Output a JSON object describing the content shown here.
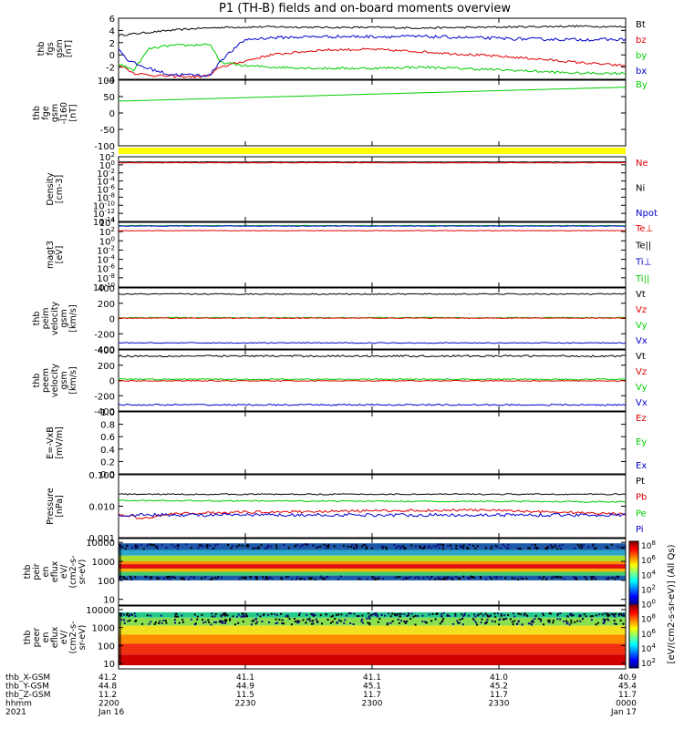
{
  "title": "P1 (TH-B) fields and on-board moments overview",
  "colors": {
    "black": "#000000",
    "red": "#e00000",
    "green": "#00cc00",
    "blue": "#0000cc",
    "yellow": "#ffff00",
    "darkred": "#660000"
  },
  "chart_data": [
    {
      "type": "line",
      "ylabel": [
        "thb",
        "fgs",
        "gsm",
        "[nT]"
      ],
      "yticks": [
        "6",
        "4",
        "2",
        "0",
        "-2",
        "-4"
      ],
      "ylim": [
        -4,
        6
      ],
      "legend": [
        {
          "label": "Bt",
          "color": "#000000"
        },
        {
          "label": "bz",
          "color": "#e00000"
        },
        {
          "label": "by",
          "color": "#00cc00"
        },
        {
          "label": "bx",
          "color": "#0000cc"
        }
      ],
      "series": [
        {
          "name": "Bt",
          "color": "#000000",
          "x": [
            0,
            0.05,
            0.1,
            0.15,
            0.2,
            0.3,
            0.4,
            0.5,
            0.6,
            0.7,
            0.8,
            0.9,
            1
          ],
          "values": [
            3.2,
            3.6,
            4.0,
            4.3,
            4.5,
            4.6,
            4.5,
            4.5,
            4.4,
            4.5,
            4.6,
            4.7,
            4.6
          ],
          "noise": 0.15
        },
        {
          "name": "bz",
          "color": "#e00000",
          "x": [
            0,
            0.03,
            0.06,
            0.1,
            0.15,
            0.18,
            0.2,
            0.25,
            0.3,
            0.4,
            0.5,
            0.6,
            0.7,
            0.8,
            0.9,
            1
          ],
          "values": [
            -1.5,
            -3.0,
            -3.3,
            -3.5,
            -3.6,
            -3.4,
            -2.0,
            -1.0,
            0.0,
            0.8,
            0.9,
            0.5,
            0.0,
            -0.5,
            -1.2,
            -1.8
          ],
          "noise": 0.2
        },
        {
          "name": "by",
          "color": "#00cc00",
          "x": [
            0,
            0.03,
            0.06,
            0.1,
            0.15,
            0.18,
            0.2,
            0.25,
            0.3,
            0.4,
            0.5,
            0.6,
            0.7,
            0.8,
            0.9,
            1
          ],
          "values": [
            -1.5,
            -2.5,
            1.0,
            1.5,
            1.6,
            1.8,
            -1.2,
            -1.8,
            -2.0,
            -2.2,
            -2.2,
            -2.0,
            -2.3,
            -2.6,
            -3.0,
            -3.0
          ],
          "noise": 0.2
        },
        {
          "name": "bx",
          "color": "#0000cc",
          "x": [
            0,
            0.02,
            0.05,
            0.1,
            0.15,
            0.18,
            0.2,
            0.25,
            0.3,
            0.4,
            0.5,
            0.6,
            0.7,
            0.8,
            0.9,
            1
          ],
          "values": [
            1.0,
            -1.0,
            -2.0,
            -3.2,
            -3.3,
            -3.4,
            -1.0,
            2.5,
            2.8,
            3.0,
            3.0,
            3.0,
            2.8,
            2.6,
            2.5,
            2.5
          ],
          "noise": 0.25
        }
      ]
    },
    {
      "type": "line",
      "ylabel": [
        "thb",
        "fge",
        "gsm",
        "-l160",
        "[nT]"
      ],
      "yticks": [
        "100",
        "50",
        "0",
        "-50",
        "-100"
      ],
      "ylim": [
        -130,
        105
      ],
      "legend": [
        {
          "label": "By",
          "color": "#00cc00"
        }
      ],
      "series": [
        {
          "name": "By",
          "color": "#00cc00",
          "x": [
            0,
            1
          ],
          "values": [
            30,
            80
          ],
          "noise": 0
        }
      ]
    },
    {
      "type": "line",
      "ylabel": [
        "Density",
        "[cm-3]"
      ],
      "yticks_sup": [
        {
          "base": "10",
          "exp": "2"
        },
        {
          "base": "10",
          "exp": "0"
        },
        {
          "base": "10",
          "exp": "-2"
        },
        {
          "base": "10",
          "exp": "-4"
        },
        {
          "base": "10",
          "exp": "-6"
        },
        {
          "base": "10",
          "exp": "-8"
        },
        {
          "base": "10",
          "exp": "-10"
        },
        {
          "base": "10",
          "exp": "-12"
        },
        {
          "base": "10",
          "exp": "-14"
        }
      ],
      "ylim": [
        -14,
        2
      ],
      "legend": [
        {
          "label": "Ne",
          "color": "#e00000"
        },
        {
          "label": "Ni",
          "color": "#000000"
        },
        {
          "label": "Npot",
          "color": "#0000cc"
        }
      ],
      "series": [
        {
          "name": "Ni",
          "color": "#000000",
          "x": [
            0,
            1
          ],
          "values": [
            0.7,
            0.7
          ],
          "noise": 0.05
        },
        {
          "name": "Ne",
          "color": "#e00000",
          "x": [
            0,
            1
          ],
          "values": [
            0.5,
            0.5
          ],
          "noise": 0.05
        }
      ]
    },
    {
      "type": "line",
      "ylabel": [
        "magt3",
        "[eV]"
      ],
      "yticks_sup": [
        {
          "base": "10",
          "exp": "4"
        },
        {
          "base": "10",
          "exp": "2"
        },
        {
          "base": "10",
          "exp": "0"
        },
        {
          "base": "10",
          "exp": "-2"
        },
        {
          "base": "10",
          "exp": "-4"
        },
        {
          "base": "10",
          "exp": "-6"
        },
        {
          "base": "10",
          "exp": "-8"
        },
        {
          "base": "10",
          "exp": "-10"
        }
      ],
      "ylim": [
        -10,
        4
      ],
      "legend": [
        {
          "label": "Te⊥",
          "color": "#e00000"
        },
        {
          "label": "Te||",
          "color": "#000000"
        },
        {
          "label": "Ti⊥",
          "color": "#0000cc"
        },
        {
          "label": "Ti||",
          "color": "#00cc00"
        }
      ],
      "series": [
        {
          "name": "Ti||",
          "color": "#00cc00",
          "x": [
            0,
            1
          ],
          "values": [
            3.3,
            3.3
          ],
          "noise": 0.05
        },
        {
          "name": "Ti⊥",
          "color": "#0000cc",
          "x": [
            0,
            1
          ],
          "values": [
            3.2,
            3.2
          ],
          "noise": 0.05
        },
        {
          "name": "Te⊥",
          "color": "#e00000",
          "x": [
            0,
            1
          ],
          "values": [
            2.2,
            2.2
          ],
          "noise": 0.06
        }
      ]
    },
    {
      "type": "line",
      "ylabel": [
        "thb",
        "peim",
        "velocity",
        "gsm",
        "[km/s]"
      ],
      "yticks": [
        "400",
        "200",
        "0",
        "-200",
        "-400"
      ],
      "ylim": [
        -400,
        400
      ],
      "legend": [
        {
          "label": "Vt",
          "color": "#000000"
        },
        {
          "label": "Vz",
          "color": "#e00000"
        },
        {
          "label": "Vy",
          "color": "#00cc00"
        },
        {
          "label": "Vx",
          "color": "#0000cc"
        }
      ],
      "series": [
        {
          "name": "Vt",
          "color": "#000000",
          "x": [
            0,
            1
          ],
          "values": [
            320,
            320
          ],
          "noise": 8
        },
        {
          "name": "Vy",
          "color": "#00cc00",
          "x": [
            0,
            1
          ],
          "values": [
            10,
            10
          ],
          "noise": 6
        },
        {
          "name": "Vz",
          "color": "#e00000",
          "x": [
            0,
            1
          ],
          "values": [
            5,
            5
          ],
          "noise": 5
        },
        {
          "name": "Vx",
          "color": "#0000cc",
          "x": [
            0,
            1
          ],
          "values": [
            -320,
            -320
          ],
          "noise": 6
        }
      ]
    },
    {
      "type": "line",
      "ylabel": [
        "thb",
        "peem",
        "velocity",
        "gsm",
        "[km/s]"
      ],
      "yticks": [
        "400",
        "200",
        "0",
        "-200",
        "-400"
      ],
      "ylim": [
        -400,
        400
      ],
      "legend": [
        {
          "label": "Vt",
          "color": "#000000"
        },
        {
          "label": "Vz",
          "color": "#e00000"
        },
        {
          "label": "Vy",
          "color": "#00cc00"
        },
        {
          "label": "Vx",
          "color": "#0000cc"
        }
      ],
      "series": [
        {
          "name": "Vt",
          "color": "#000000",
          "x": [
            0,
            1
          ],
          "values": [
            320,
            320
          ],
          "noise": 12
        },
        {
          "name": "Vy",
          "color": "#00cc00",
          "x": [
            0,
            1
          ],
          "values": [
            15,
            15
          ],
          "noise": 8
        },
        {
          "name": "Vz",
          "color": "#e00000",
          "x": [
            0,
            1
          ],
          "values": [
            -5,
            -5
          ],
          "noise": 6
        },
        {
          "name": "Vx",
          "color": "#0000cc",
          "x": [
            0,
            1
          ],
          "values": [
            -320,
            -320
          ],
          "noise": 10
        }
      ]
    },
    {
      "type": "line",
      "ylabel": [
        "E=-VxB",
        "[mV/m]"
      ],
      "yticks": [
        "1.0",
        "0.8",
        "0.6",
        "0.4",
        "0.2",
        "0.0"
      ],
      "ylim": [
        0,
        1
      ],
      "legend": [
        {
          "label": "Ez",
          "color": "#e00000"
        },
        {
          "label": "Ey",
          "color": "#00cc00"
        },
        {
          "label": "Ex",
          "color": "#0000cc"
        }
      ],
      "series": []
    },
    {
      "type": "line",
      "ylabel": [
        "Pressure",
        "[nPa]"
      ],
      "yticks": [
        "0.100",
        "0.010",
        "0.001"
      ],
      "ylim": [
        -3,
        -1
      ],
      "legend": [
        {
          "label": "Pt",
          "color": "#000000"
        },
        {
          "label": "Pb",
          "color": "#e00000"
        },
        {
          "label": "Pe",
          "color": "#00cc00"
        },
        {
          "label": "Pi",
          "color": "#0000cc"
        }
      ],
      "series": [
        {
          "name": "Pt",
          "color": "#000000",
          "x": [
            0,
            1
          ],
          "values": [
            -1.62,
            -1.62
          ],
          "noise": 0.02
        },
        {
          "name": "Pe",
          "color": "#00cc00",
          "x": [
            0,
            0.5,
            1
          ],
          "values": [
            -1.82,
            -1.84,
            -1.86
          ],
          "noise": 0.02
        },
        {
          "name": "Pb",
          "color": "#e00000",
          "x": [
            0,
            0.05,
            0.1,
            0.2,
            0.3,
            0.5,
            0.7,
            0.9,
            1
          ],
          "values": [
            -2.25,
            -2.4,
            -2.25,
            -2.2,
            -2.18,
            -2.15,
            -2.12,
            -2.2,
            -2.25
          ],
          "noise": 0.04
        },
        {
          "name": "Pi",
          "color": "#0000cc",
          "x": [
            0,
            1
          ],
          "values": [
            -2.28,
            -2.28
          ],
          "noise": 0.05
        }
      ]
    },
    {
      "type": "heatmap",
      "ylabel": [
        "thb",
        "peir",
        "en",
        "eflux",
        "eV/",
        "(cm2-s-",
        "sr-eV)"
      ],
      "yticks": [
        "10000",
        "1000",
        "100",
        "10"
      ],
      "ylim": [
        0.7,
        4.2
      ],
      "bands": [
        {
          "from": 3.6,
          "to": 3.95,
          "color": "#1e5aa8",
          "speckle": true
        },
        {
          "from": 3.3,
          "to": 3.6,
          "color": "#2aa6c9",
          "speckle": false
        },
        {
          "from": 3.0,
          "to": 3.3,
          "color": "#a8e032",
          "speckle": false
        },
        {
          "from": 2.85,
          "to": 3.0,
          "color": "#ff8c00",
          "speckle": false
        },
        {
          "from": 2.62,
          "to": 2.85,
          "color": "#e01010",
          "speckle": false
        },
        {
          "from": 2.45,
          "to": 2.62,
          "color": "#ffb000",
          "speckle": false
        },
        {
          "from": 2.25,
          "to": 2.45,
          "color": "#3cd070",
          "speckle": false
        },
        {
          "from": 2.0,
          "to": 2.25,
          "color": "#1e5aa8",
          "speckle": true
        }
      ],
      "colorbar": [
        "10",
        "8",
        "10",
        "6",
        "10",
        "4",
        "10",
        "2",
        "10",
        "0"
      ]
    },
    {
      "type": "heatmap",
      "ylabel": [
        "thb",
        "peer",
        "en",
        "eflux",
        "eV/",
        "(cm2-s-",
        "sr-eV)"
      ],
      "yticks": [
        "10000",
        "1000",
        "100",
        "10"
      ],
      "ylim": [
        0.7,
        4.2
      ],
      "bands": [
        {
          "from": 3.55,
          "to": 3.85,
          "color": "#26c98c",
          "speckle": true
        },
        {
          "from": 3.1,
          "to": 3.55,
          "color": "#88e050",
          "speckle": true
        },
        {
          "from": 2.6,
          "to": 3.1,
          "color": "#f0e020",
          "speckle": false
        },
        {
          "from": 2.1,
          "to": 2.6,
          "color": "#ff8c00",
          "speckle": false
        },
        {
          "from": 1.5,
          "to": 2.1,
          "color": "#f03010",
          "speckle": false
        },
        {
          "from": 0.9,
          "to": 1.5,
          "color": "#d00000",
          "speckle": false
        }
      ]
    }
  ],
  "colorbar": {
    "ticks": [
      {
        "base": "10",
        "exp": "8"
      },
      {
        "base": "10",
        "exp": "6"
      },
      {
        "base": "10",
        "exp": "4"
      },
      {
        "base": "10",
        "exp": "2"
      },
      {
        "base": "10",
        "exp": "0"
      },
      {
        "base": "10",
        "exp": "8"
      },
      {
        "base": "10",
        "exp": "6"
      },
      {
        "base": "10",
        "exp": "4"
      },
      {
        "base": "10",
        "exp": "2"
      }
    ],
    "label": "[eV/(cm2-s-sr-eV)] (All Qs)"
  },
  "time_axis": {
    "rows": [
      {
        "label": "thb_X-GSM",
        "values": [
          "41.2",
          "41.1",
          "41.1",
          "41.0",
          "40.9"
        ]
      },
      {
        "label": "thb_Y-GSM",
        "values": [
          "44.8",
          "44.9",
          "45.1",
          "45.2",
          "45.4"
        ]
      },
      {
        "label": "thb_Z-GSM",
        "values": [
          "11.2",
          "11.5",
          "11.7",
          "11.7",
          "11.7"
        ]
      },
      {
        "label": "hhmm",
        "values": [
          "2200",
          "2230",
          "2300",
          "2330",
          "0000"
        ]
      },
      {
        "label": "2021",
        "values": [
          "Jan 16",
          "",
          "",
          "",
          "Jan 17"
        ]
      }
    ]
  }
}
